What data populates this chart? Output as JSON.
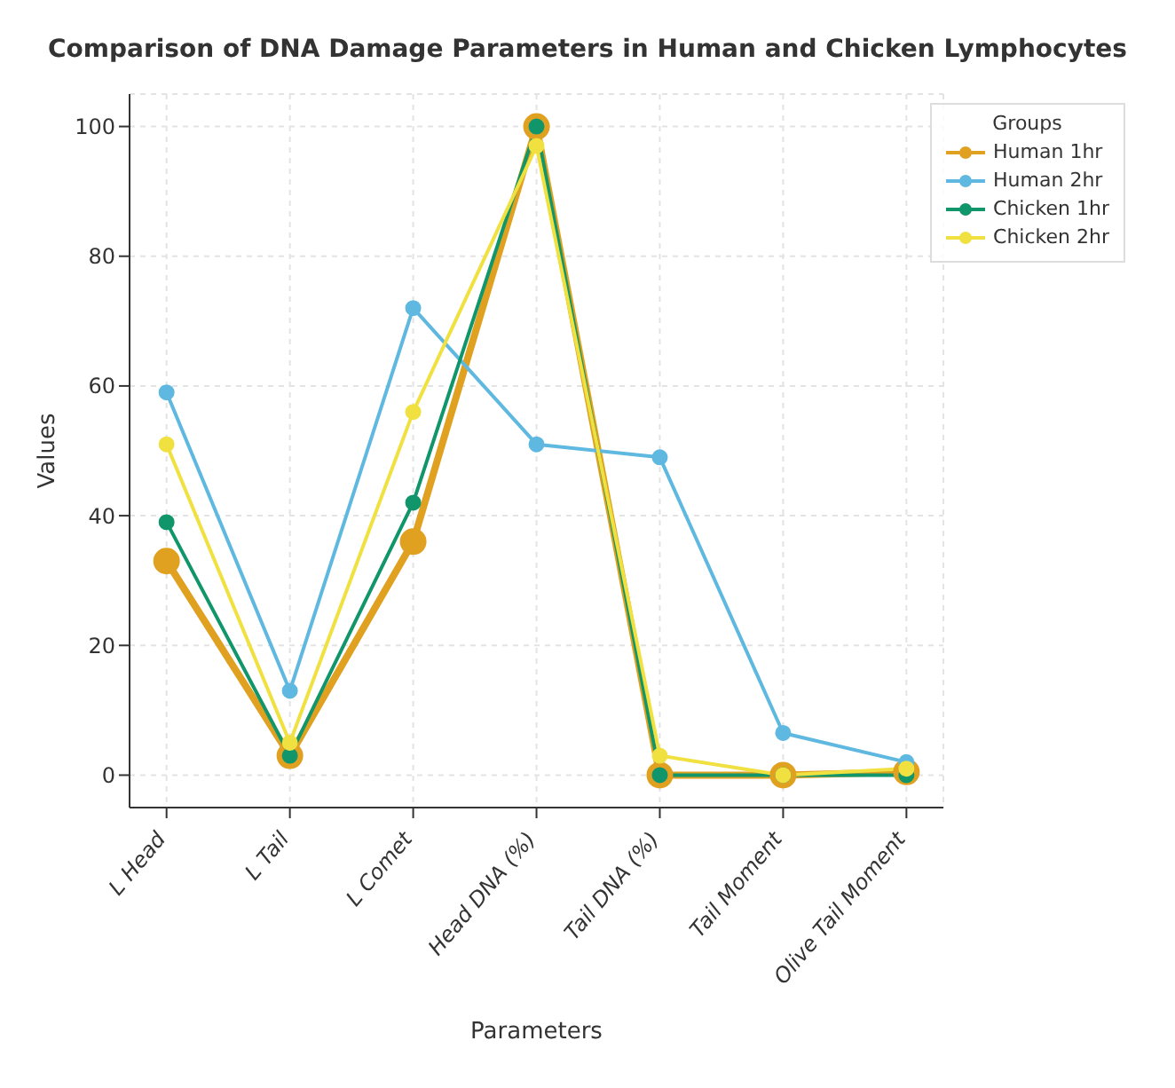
{
  "chart_data": {
    "type": "line",
    "title": "Comparison of DNA Damage Parameters in Human and Chicken Lymphocytes",
    "xlabel": "Parameters",
    "ylabel": "Values",
    "legend_title": "Groups",
    "categories": [
      "L Head",
      "L Tail",
      "L Comet",
      "Head DNA (%)",
      "Tail DNA (%)",
      "Tail Moment",
      "Olive Tail Moment"
    ],
    "series": [
      {
        "name": "Human 1hr",
        "color": "#e0a020",
        "values": [
          33,
          3,
          36,
          100,
          0,
          0,
          0.5
        ]
      },
      {
        "name": "Human 2hr",
        "color": "#5fb8e0",
        "values": [
          59,
          13,
          72,
          51,
          49,
          6.5,
          2
        ]
      },
      {
        "name": "Chicken 1hr",
        "color": "#10966a",
        "values": [
          39,
          3,
          42,
          100,
          0,
          0,
          0
        ]
      },
      {
        "name": "Chicken 2hr",
        "color": "#f0e040",
        "values": [
          51,
          5,
          56,
          97,
          3,
          0,
          1
        ]
      }
    ],
    "ylim": [
      -5,
      105
    ],
    "yticks": [
      0,
      20,
      40,
      60,
      80,
      100
    ],
    "grid": true,
    "legend": "top right",
    "marker": "circle",
    "line_style": "solid"
  }
}
